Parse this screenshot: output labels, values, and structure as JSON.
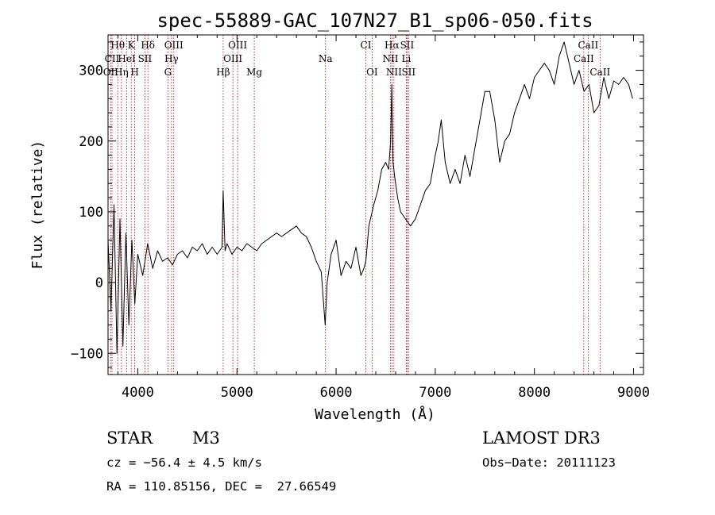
{
  "chart_data": {
    "type": "line",
    "title": "spec-55889-GAC_107N27_B1_sp06-050.fits",
    "xlabel": "Wavelength (Å)",
    "ylabel": "Flux (relative)",
    "xlim": [
      3700,
      9100
    ],
    "ylim": [
      -130,
      350
    ],
    "xticks": [
      4000,
      5000,
      6000,
      7000,
      8000,
      9000
    ],
    "yticks": [
      -100,
      0,
      100,
      200,
      300
    ],
    "grid": false,
    "series": [
      {
        "name": "spectrum",
        "x": [
          3700,
          3730,
          3760,
          3790,
          3820,
          3850,
          3880,
          3910,
          3940,
          3970,
          4000,
          4050,
          4100,
          4150,
          4200,
          4250,
          4300,
          4350,
          4400,
          4450,
          4500,
          4550,
          4600,
          4650,
          4700,
          4750,
          4800,
          4850,
          4861,
          4880,
          4900,
          4950,
          5000,
          5050,
          5100,
          5150,
          5200,
          5250,
          5300,
          5350,
          5400,
          5450,
          5500,
          5550,
          5600,
          5650,
          5700,
          5750,
          5800,
          5850,
          5890,
          5910,
          5950,
          6000,
          6050,
          6100,
          6150,
          6200,
          6250,
          6280,
          6300,
          6330,
          6380,
          6420,
          6460,
          6500,
          6530,
          6550,
          6562,
          6575,
          6590,
          6620,
          6650,
          6700,
          6750,
          6800,
          6850,
          6900,
          6950,
          7000,
          7030,
          7060,
          7100,
          7150,
          7200,
          7250,
          7300,
          7350,
          7400,
          7450,
          7500,
          7550,
          7600,
          7650,
          7700,
          7750,
          7800,
          7850,
          7900,
          7950,
          8000,
          8050,
          8100,
          8150,
          8200,
          8250,
          8300,
          8350,
          8400,
          8450,
          8500,
          8550,
          8600,
          8650,
          8700,
          8750,
          8800,
          8850,
          8900,
          8950,
          8990
        ],
        "values": [
          60,
          -40,
          110,
          -100,
          90,
          -90,
          70,
          -60,
          60,
          -30,
          40,
          10,
          55,
          20,
          45,
          30,
          35,
          25,
          40,
          45,
          35,
          50,
          45,
          55,
          40,
          50,
          40,
          50,
          130,
          45,
          55,
          40,
          50,
          45,
          55,
          50,
          45,
          55,
          60,
          65,
          70,
          65,
          70,
          75,
          80,
          70,
          65,
          50,
          30,
          15,
          -60,
          0,
          40,
          60,
          10,
          30,
          20,
          50,
          10,
          20,
          30,
          80,
          110,
          130,
          160,
          170,
          160,
          200,
          280,
          170,
          150,
          120,
          100,
          90,
          80,
          90,
          110,
          130,
          140,
          180,
          200,
          230,
          170,
          140,
          160,
          140,
          180,
          150,
          190,
          230,
          270,
          270,
          230,
          170,
          200,
          210,
          240,
          260,
          280,
          260,
          290,
          300,
          310,
          300,
          280,
          320,
          340,
          310,
          280,
          300,
          270,
          280,
          240,
          250,
          290,
          260,
          285,
          280,
          290,
          280,
          260
        ]
      }
    ],
    "lines": [
      {
        "label": "Hθ",
        "x": 3798,
        "row": 1
      },
      {
        "label": "CII",
        "x": 3740,
        "row": 2
      },
      {
        "label": "OII",
        "x": 3727,
        "row": 3
      },
      {
        "label": "Hη",
        "x": 3835,
        "row": 3
      },
      {
        "label": "HeI",
        "x": 3889,
        "row": 2
      },
      {
        "label": "K",
        "x": 3934,
        "row": 1
      },
      {
        "label": "H",
        "x": 3969,
        "row": 3
      },
      {
        "label": "SII",
        "x": 4072,
        "row": 2
      },
      {
        "label": "Hδ",
        "x": 4102,
        "row": 1
      },
      {
        "label": "G",
        "x": 4304,
        "row": 3
      },
      {
        "label": "OIII",
        "x": 4363,
        "row": 1
      },
      {
        "label": "Hγ",
        "x": 4340,
        "row": 2
      },
      {
        "label": "Hβ",
        "x": 4861,
        "row": 3
      },
      {
        "label": "OIII",
        "x": 4959,
        "row": 2
      },
      {
        "label": "OIII",
        "x": 5007,
        "row": 1
      },
      {
        "label": "Mg",
        "x": 5175,
        "row": 3
      },
      {
        "label": "Na",
        "x": 5893,
        "row": 2
      },
      {
        "label": "CI",
        "x": 6300,
        "row": 1
      },
      {
        "label": "OI",
        "x": 6363,
        "row": 3
      },
      {
        "label": "Hα",
        "x": 6563,
        "row": 1
      },
      {
        "label": "NII",
        "x": 6548,
        "row": 2
      },
      {
        "label": "NII",
        "x": 6583,
        "row": 3
      },
      {
        "label": "SII",
        "x": 6716,
        "row": 1
      },
      {
        "label": "Li",
        "x": 6708,
        "row": 2
      },
      {
        "label": "SII",
        "x": 6731,
        "row": 3
      },
      {
        "label": "CaII",
        "x": 8542,
        "row": 1
      },
      {
        "label": "CaII",
        "x": 8498,
        "row": 2
      },
      {
        "label": "CaII",
        "x": 8662,
        "row": 3
      }
    ]
  },
  "footer": {
    "object_type": "STAR",
    "subclass": "M3",
    "survey": "LAMOST DR3",
    "cz": "cz = −56.4 ± 4.5 km/s",
    "obs_date": "Obs−Date: 20111123",
    "radec": "RA = 110.85156, DEC =  27.66549"
  },
  "colors": {
    "line": "#000000",
    "marker": "#c00000"
  }
}
